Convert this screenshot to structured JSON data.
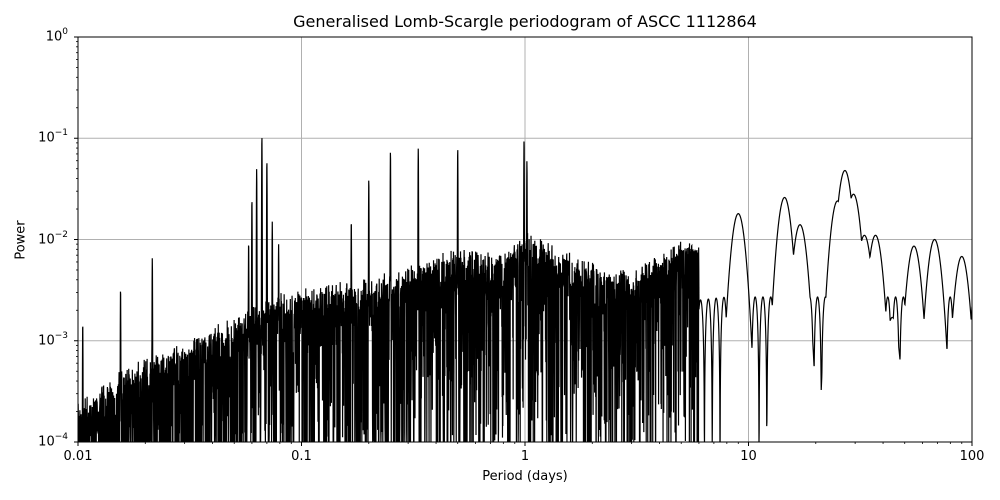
{
  "chart_data": {
    "type": "line",
    "title": "Generalised Lomb-Scargle periodogram of ASCC 1112864",
    "xlabel": "Period (days)",
    "ylabel": "Power",
    "xscale": "log",
    "yscale": "log",
    "xlim": [
      0.01,
      100
    ],
    "ylim": [
      0.0001,
      1
    ],
    "grid": true,
    "legend": null,
    "x_ticks": [
      "0.01",
      "0.1",
      "1",
      "10",
      "100"
    ],
    "y_ticks": [
      {
        "base": "10",
        "exp": "−4"
      },
      {
        "base": "10",
        "exp": "−3"
      },
      {
        "base": "10",
        "exp": "−2"
      },
      {
        "base": "10",
        "exp": "−1"
      },
      {
        "base": "10",
        "exp": "0"
      }
    ],
    "line_color": "#000000",
    "grid_color": "#b0b0b0",
    "notable_peaks": [
      {
        "period": 0.0105,
        "power": 0.0015
      },
      {
        "period": 0.0155,
        "power": 0.0033
      },
      {
        "period": 0.0215,
        "power": 0.0066
      },
      {
        "period": 0.058,
        "power": 0.0095
      },
      {
        "period": 0.06,
        "power": 0.025
      },
      {
        "period": 0.063,
        "power": 0.05
      },
      {
        "period": 0.0665,
        "power": 0.105
      },
      {
        "period": 0.07,
        "power": 0.06
      },
      {
        "period": 0.074,
        "power": 0.015
      },
      {
        "period": 0.079,
        "power": 0.009
      },
      {
        "period": 0.167,
        "power": 0.0155
      },
      {
        "period": 0.2,
        "power": 0.04
      },
      {
        "period": 0.25,
        "power": 0.075
      },
      {
        "period": 0.333,
        "power": 0.08
      },
      {
        "period": 0.5,
        "power": 0.08
      },
      {
        "period": 0.99,
        "power": 0.097
      },
      {
        "period": 1.02,
        "power": 0.06
      },
      {
        "period": 9.0,
        "power": 0.018
      },
      {
        "period": 14.5,
        "power": 0.026
      },
      {
        "period": 17.0,
        "power": 0.014
      },
      {
        "period": 25.0,
        "power": 0.024
      },
      {
        "period": 27.0,
        "power": 0.048
      },
      {
        "period": 29.5,
        "power": 0.028
      },
      {
        "period": 33.0,
        "power": 0.011
      },
      {
        "period": 37.0,
        "power": 0.011
      },
      {
        "period": 44.0,
        "power": 0.0017
      },
      {
        "period": 55.0,
        "power": 0.0086
      },
      {
        "period": 68.0,
        "power": 0.01
      },
      {
        "period": 90.0,
        "power": 0.0068
      }
    ],
    "envelope": {
      "description": "dense oscillating periodogram; noise floor rises from ~2e-4 at P=0.01 to ~3e-3 near P=0.3-1, becomes sparse and resolved beyond ~5 days",
      "x": [
        0.01,
        0.015,
        0.02,
        0.03,
        0.05,
        0.08,
        0.12,
        0.2,
        0.3,
        0.5,
        0.8,
        1.0,
        2,
        3,
        5,
        8
      ],
      "upper_power": [
        0.0002,
        0.0004,
        0.0006,
        0.0008,
        0.0015,
        0.0025,
        0.003,
        0.0035,
        0.0045,
        0.007,
        0.006,
        0.01,
        0.005,
        0.004,
        0.008,
        0.009
      ]
    }
  }
}
